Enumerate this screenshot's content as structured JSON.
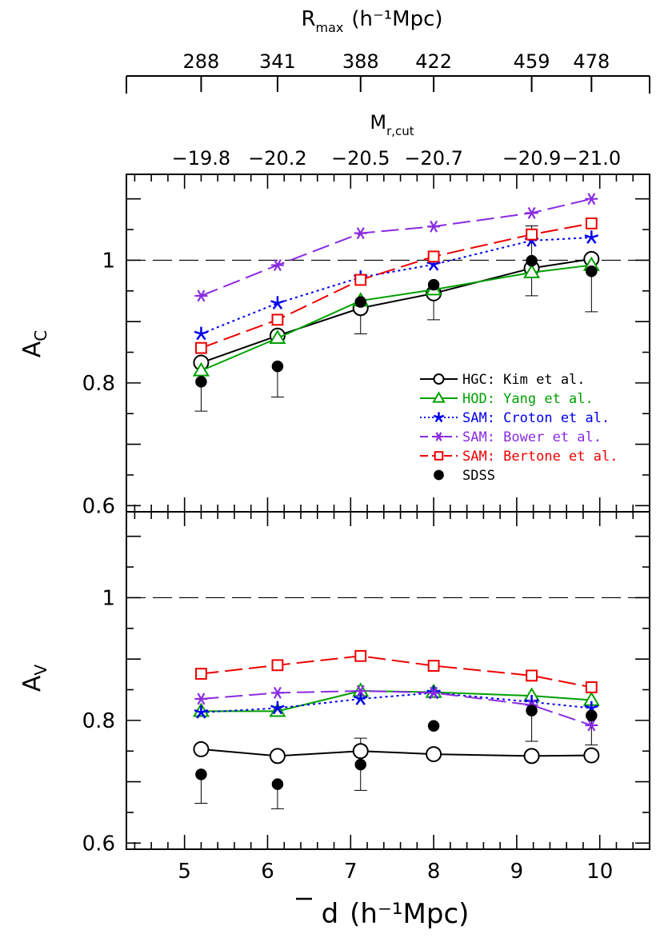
{
  "chart_data": {
    "type": "line",
    "top_axes": {
      "rmax": {
        "label_main": "R",
        "label_sub": "max",
        "label_unit": "(h⁻¹Mpc)",
        "tick_labels": [
          "288",
          "341",
          "388",
          "422",
          "459",
          "478"
        ]
      },
      "mcut": {
        "label_main": "M",
        "label_sub": "r,cut",
        "tick_labels": [
          "−19.8",
          "−20.2",
          "−20.5",
          "−20.7",
          "−20.9",
          "−21.0"
        ]
      }
    },
    "x": [
      5.2,
      6.12,
      7.12,
      8.0,
      9.18,
      9.9
    ],
    "xlim": [
      4.3,
      10.6
    ],
    "xticks": [
      5,
      6,
      7,
      8,
      9,
      10
    ],
    "xtick_labels": [
      "5",
      "6",
      "7",
      "8",
      "9",
      "10"
    ],
    "xlabel_main": "d",
    "xlabel_unit": "(h⁻¹Mpc)",
    "panels": [
      {
        "ylabel_main": "A",
        "ylabel_sub": "C",
        "ylim": [
          0.59,
          1.14
        ],
        "yticks": [
          0.6,
          0.8,
          1.0
        ],
        "ytick_labels": [
          "0.6",
          "0.8",
          "1"
        ],
        "reference_line": 1.0,
        "series": [
          {
            "name": "HGC: Kim et al.",
            "color": "#000000",
            "marker": "circle-open",
            "line": "solid",
            "values": [
              0.833,
              0.877,
              0.922,
              0.946,
              0.987,
              1.002
            ]
          },
          {
            "name": "HOD: Yang et al.",
            "color": "#00a000",
            "marker": "triangle-open",
            "line": "solid",
            "values": [
              0.82,
              0.873,
              0.934,
              0.952,
              0.98,
              0.992
            ]
          },
          {
            "name": "SAM: Croton et al.",
            "color": "#0000ee",
            "marker": "star",
            "line": "dotted",
            "values": [
              0.88,
              0.93,
              0.972,
              0.993,
              1.032,
              1.037
            ]
          },
          {
            "name": "SAM: Bower et al.",
            "color": "#8a2be2",
            "marker": "asterisk",
            "line": "dashed",
            "values": [
              0.942,
              0.992,
              1.044,
              1.055,
              1.077,
              1.1
            ]
          },
          {
            "name": "SAM: Bertone et al.",
            "color": "#ee0000",
            "marker": "square-open",
            "line": "dashed",
            "values": [
              0.857,
              0.903,
              0.968,
              1.006,
              1.042,
              1.06
            ]
          }
        ],
        "sdss": {
          "name": "SDSS",
          "values": [
            0.802,
            0.827,
            0.932,
            0.96,
            0.999,
            0.982
          ],
          "err_low": [
            0.048,
            0.05,
            0.052,
            0.057,
            0.057,
            0.066
          ],
          "err_high": [
            0.0,
            0.0,
            0.0,
            0.0,
            0.057,
            0.0
          ]
        }
      },
      {
        "ylabel_main": "A",
        "ylabel_sub": "V",
        "ylim": [
          0.59,
          1.14
        ],
        "yticks": [
          0.6,
          0.8,
          1.0
        ],
        "ytick_labels": [
          "0.6",
          "0.8",
          "1"
        ],
        "reference_line": 1.0,
        "series": [
          {
            "name": "HGC: Kim et al.",
            "color": "#000000",
            "marker": "circle-open",
            "line": "solid",
            "values": [
              0.753,
              0.742,
              0.75,
              0.745,
              0.742,
              0.743
            ]
          },
          {
            "name": "HOD: Yang et al.",
            "color": "#00a000",
            "marker": "triangle-open",
            "line": "solid",
            "values": [
              0.815,
              0.815,
              0.848,
              0.846,
              0.84,
              0.833
            ]
          },
          {
            "name": "SAM: Croton et al.",
            "color": "#0000ee",
            "marker": "star",
            "line": "dotted",
            "values": [
              0.813,
              0.82,
              0.835,
              0.845,
              0.83,
              0.82
            ]
          },
          {
            "name": "SAM: Bower et al.",
            "color": "#8a2be2",
            "marker": "asterisk",
            "line": "dashed",
            "values": [
              0.835,
              0.845,
              0.848,
              0.845,
              0.825,
              0.792
            ]
          },
          {
            "name": "SAM: Bertone et al.",
            "color": "#ee0000",
            "marker": "square-open",
            "line": "dashed",
            "values": [
              0.876,
              0.89,
              0.905,
              0.889,
              0.873,
              0.854
            ]
          }
        ],
        "sdss": {
          "name": "SDSS",
          "values": [
            0.712,
            0.696,
            0.728,
            0.791,
            0.816,
            0.808
          ],
          "err_low": [
            0.047,
            0.04,
            0.042,
            0.0,
            0.05,
            0.048
          ],
          "err_high": [
            0.0,
            0.0,
            0.043,
            0.0,
            0.0,
            0.0
          ]
        }
      }
    ],
    "legend": {
      "placement": "inside lower-right of upper panel",
      "entries": [
        {
          "label": "HGC: Kim et al.",
          "color": "#000000",
          "marker": "circle-open",
          "line": "solid"
        },
        {
          "label": "HOD: Yang et al.",
          "color": "#00a000",
          "marker": "triangle-open",
          "line": "solid"
        },
        {
          "label": "SAM: Croton et al.",
          "color": "#0000ee",
          "marker": "star",
          "line": "dotted"
        },
        {
          "label": "SAM: Bower et al.",
          "color": "#8a2be2",
          "marker": "asterisk",
          "line": "dashed"
        },
        {
          "label": "SAM: Bertone et al.",
          "color": "#ee0000",
          "marker": "square-open",
          "line": "dashed"
        },
        {
          "label": "SDSS",
          "color": "#000000",
          "marker": "circle-filled",
          "line": "none"
        }
      ]
    }
  }
}
